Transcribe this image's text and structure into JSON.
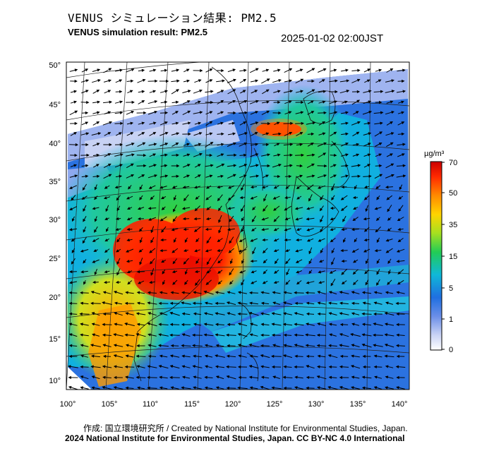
{
  "title_jp": "VENUS シミュレーション結果: PM2.5",
  "title_en": "VENUS simulation result: PM2.5",
  "timestamp": "2025-01-02 02:00JST",
  "lat_labels": [
    "50°",
    "45°",
    "40°",
    "35°",
    "30°",
    "25°",
    "20°",
    "15°",
    "10°"
  ],
  "lon_labels": [
    "100°",
    "105°",
    "110°",
    "115°",
    "120°",
    "125°",
    "130°",
    "135°",
    "140°"
  ],
  "colorbar": {
    "unit": "µg/m³",
    "ticks": [
      "70",
      "50",
      "35",
      "15",
      "5",
      "1",
      "0"
    ],
    "colors": [
      "#ffffff",
      "#9fb2f0",
      "#2a7de0",
      "#0fb8d8",
      "#2fd05a",
      "#b0e020",
      "#ffd000",
      "#ff8a00",
      "#ff2200",
      "#d00000"
    ]
  },
  "credit_line1": "作成: 国立環境研究所 / Created by National Institute for Environmental Studies, Japan.",
  "credit_line2": "2024 National Institute for Environmental Studies, Japan. CC BY-NC 4.0 International"
}
